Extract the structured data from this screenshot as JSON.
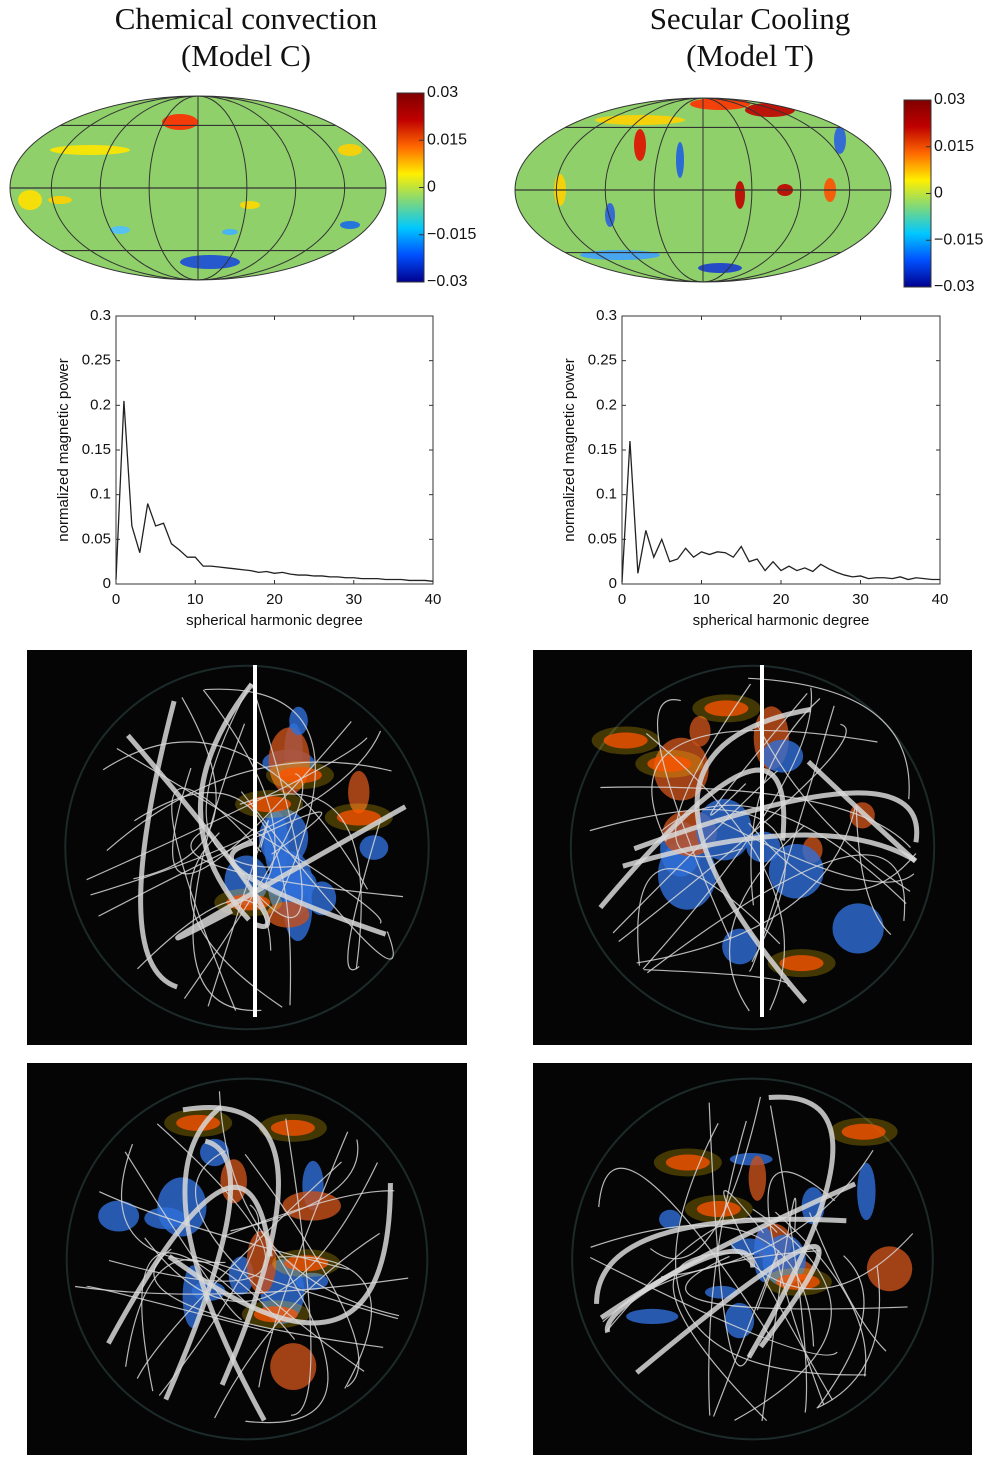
{
  "chart_data": [
    {
      "type": "map",
      "title": "Chemical convection",
      "subtitle": "(Model C)",
      "colorbar": {
        "ylim": [
          -0.03,
          0.03
        ],
        "yticks": [
          0.03,
          0.015,
          0,
          {
            "value": -0.015,
            "label": "−0.015"
          },
          {
            "value": -0.03,
            "label": "−0.03"
          }
        ],
        "colormap": [
          "#00008f",
          "#0050ff",
          "#00c8ff",
          "#7fd87a",
          "#ffef00",
          "#ff6a00",
          "#c00000",
          "#800000"
        ]
      }
    },
    {
      "type": "line",
      "xlabel": "spherical harmonic degree",
      "ylabel": "normalized magnetic power",
      "color": "#222222",
      "x": [
        0,
        1,
        2,
        3,
        4,
        5,
        6,
        7,
        8,
        9,
        10,
        11,
        12,
        13,
        14,
        15,
        16,
        17,
        18,
        19,
        20,
        21,
        22,
        23,
        24,
        25,
        26,
        27,
        28,
        29,
        30,
        31,
        32,
        33,
        34,
        35,
        36,
        37,
        38,
        39,
        40
      ],
      "values": [
        0.005,
        0.205,
        0.065,
        0.035,
        0.09,
        0.065,
        0.068,
        0.045,
        0.038,
        0.03,
        0.03,
        0.02,
        0.02,
        0.019,
        0.018,
        0.017,
        0.016,
        0.015,
        0.013,
        0.014,
        0.012,
        0.013,
        0.011,
        0.01,
        0.01,
        0.009,
        0.009,
        0.008,
        0.008,
        0.007,
        0.007,
        0.006,
        0.006,
        0.006,
        0.005,
        0.005,
        0.005,
        0.004,
        0.004,
        0.004,
        0.003
      ],
      "xlim": [
        0,
        40
      ],
      "xticks": [
        0,
        10,
        20,
        30,
        40
      ],
      "ylim": [
        0,
        0.3
      ],
      "yticks": [
        0,
        0.05,
        0.1,
        0.15,
        0.2,
        0.25,
        0.3
      ]
    },
    {
      "type": "map",
      "title": "Secular Cooling",
      "subtitle": "(Model T)",
      "colorbar": {
        "ylim": [
          -0.03,
          0.03
        ],
        "yticks": [
          0.03,
          0.015,
          0,
          {
            "value": -0.015,
            "label": "−0.015"
          },
          {
            "value": -0.03,
            "label": "−0.03"
          }
        ],
        "colormap": [
          "#00008f",
          "#0050ff",
          "#00c8ff",
          "#7fd87a",
          "#ffef00",
          "#ff6a00",
          "#c00000",
          "#800000"
        ]
      }
    },
    {
      "type": "line",
      "xlabel": "spherical harmonic degree",
      "ylabel": "normalized magnetic power",
      "color": "#222222",
      "x": [
        0,
        1,
        2,
        3,
        4,
        5,
        6,
        7,
        8,
        9,
        10,
        11,
        12,
        13,
        14,
        15,
        16,
        17,
        18,
        19,
        20,
        21,
        22,
        23,
        24,
        25,
        26,
        27,
        28,
        29,
        30,
        31,
        32,
        33,
        34,
        35,
        36,
        37,
        38,
        39,
        40
      ],
      "values": [
        0.002,
        0.16,
        0.012,
        0.06,
        0.03,
        0.05,
        0.025,
        0.028,
        0.04,
        0.03,
        0.036,
        0.033,
        0.036,
        0.035,
        0.03,
        0.042,
        0.025,
        0.028,
        0.015,
        0.025,
        0.015,
        0.02,
        0.015,
        0.018,
        0.014,
        0.022,
        0.017,
        0.013,
        0.01,
        0.008,
        0.009,
        0.006,
        0.007,
        0.007,
        0.006,
        0.008,
        0.005,
        0.007,
        0.006,
        0.005,
        0.005
      ],
      "xlim": [
        0,
        40
      ],
      "xticks": [
        0,
        10,
        20,
        30,
        40
      ],
      "ylim": [
        0,
        0.3
      ],
      "yticks": [
        0,
        0.05,
        0.1,
        0.15,
        0.2,
        0.25,
        0.3
      ]
    }
  ]
}
